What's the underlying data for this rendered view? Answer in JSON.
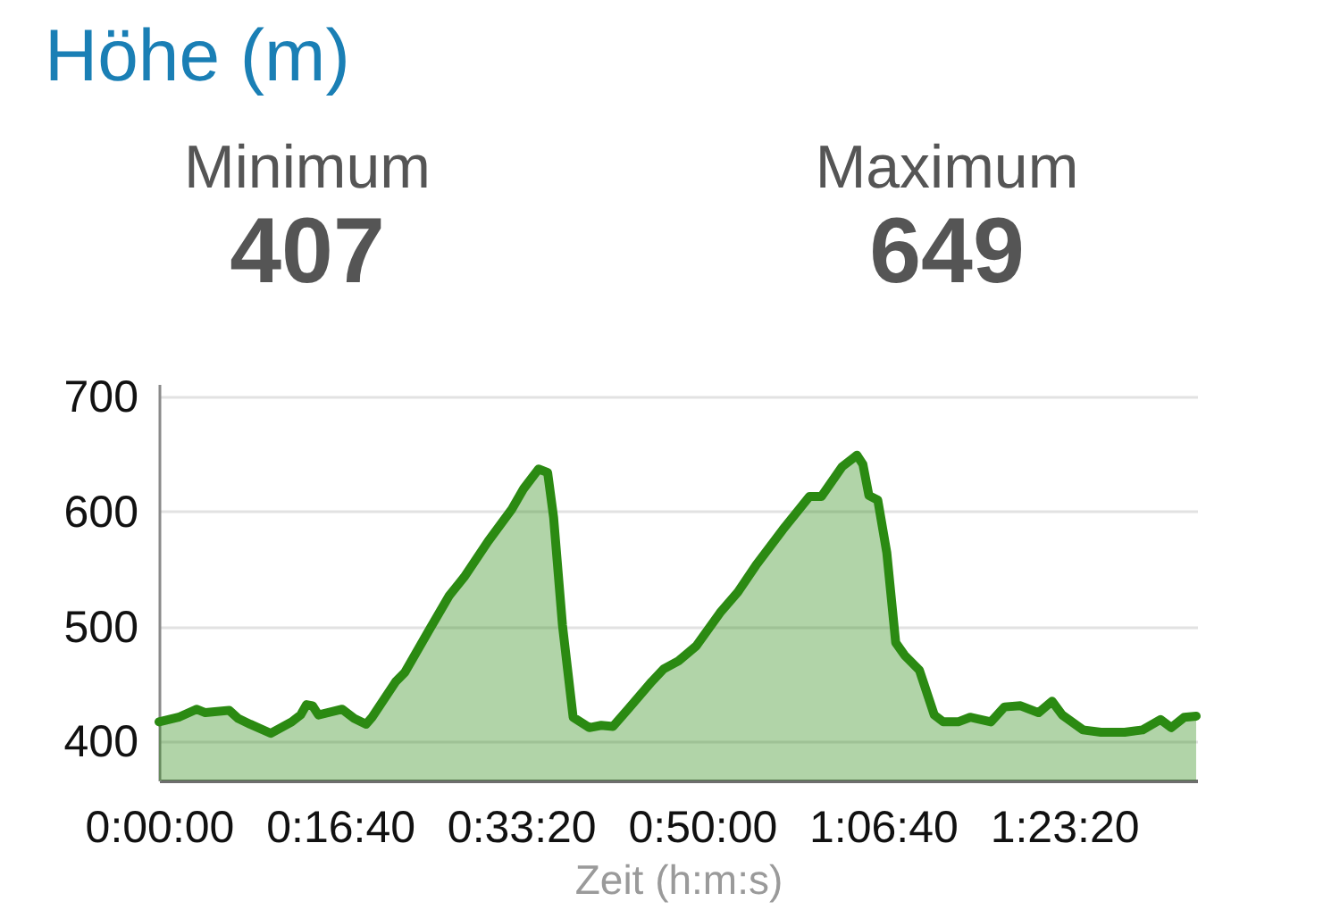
{
  "chart_data": {
    "type": "area",
    "title": "Höhe (m)",
    "annotations": [
      "Minimum",
      "407",
      "Maximum",
      "649"
    ],
    "xlabel": "Zeit (h:m:s)",
    "x": [
      0,
      108,
      207,
      256,
      388,
      437,
      503,
      618,
      733,
      782,
      815,
      848,
      881,
      1012,
      1078,
      1144,
      1177,
      1308,
      1358,
      1489,
      1604,
      1686,
      1818,
      1949,
      2015,
      2097,
      2147,
      2180,
      2229,
      2288,
      2377,
      2443,
      2508,
      2591,
      2722,
      2788,
      2870,
      2968,
      3100,
      3198,
      3297,
      3445,
      3593,
      3659,
      3774,
      3856,
      3889,
      3922,
      3971,
      4021,
      4070,
      4119,
      4201,
      4283,
      4333,
      4415,
      4481,
      4596,
      4671,
      4760,
      4859,
      4934,
      4990,
      5105,
      5204,
      5335,
      5434,
      5533,
      5592,
      5664,
      5730
    ],
    "series": [
      {
        "color": "#2b8a12",
        "values": [
          417,
          421,
          428,
          425,
          427,
          420,
          415,
          407,
          417,
          423,
          432,
          431,
          423,
          428,
          420,
          415,
          421,
          452,
          460,
          496,
          527,
          543,
          574,
          602,
          620,
          637,
          634,
          595,
          501,
          421,
          412,
          414,
          413,
          428,
          452,
          463,
          470,
          483,
          512,
          530,
          553,
          584,
          613,
          613,
          639,
          649,
          641,
          614,
          610,
          564,
          486,
          475,
          462,
          423,
          417,
          417,
          421,
          417,
          430,
          431,
          425,
          435,
          423,
          410,
          408,
          408,
          410,
          419,
          412,
          421,
          422
        ]
      }
    ],
    "xlim": [
      0,
      5735
    ],
    "ylim": [
      366,
      711
    ],
    "xticks": [
      {
        "value": 0,
        "label": "0:00:00"
      },
      {
        "value": 1000,
        "label": "0:16:40"
      },
      {
        "value": 2000,
        "label": "0:33:20"
      },
      {
        "value": 3000,
        "label": "0:50:00"
      },
      {
        "value": 4000,
        "label": "1:06:40"
      },
      {
        "value": 5000,
        "label": "1:23:20"
      }
    ],
    "yticks": [
      400,
      500,
      600,
      700
    ],
    "grid": "y"
  }
}
